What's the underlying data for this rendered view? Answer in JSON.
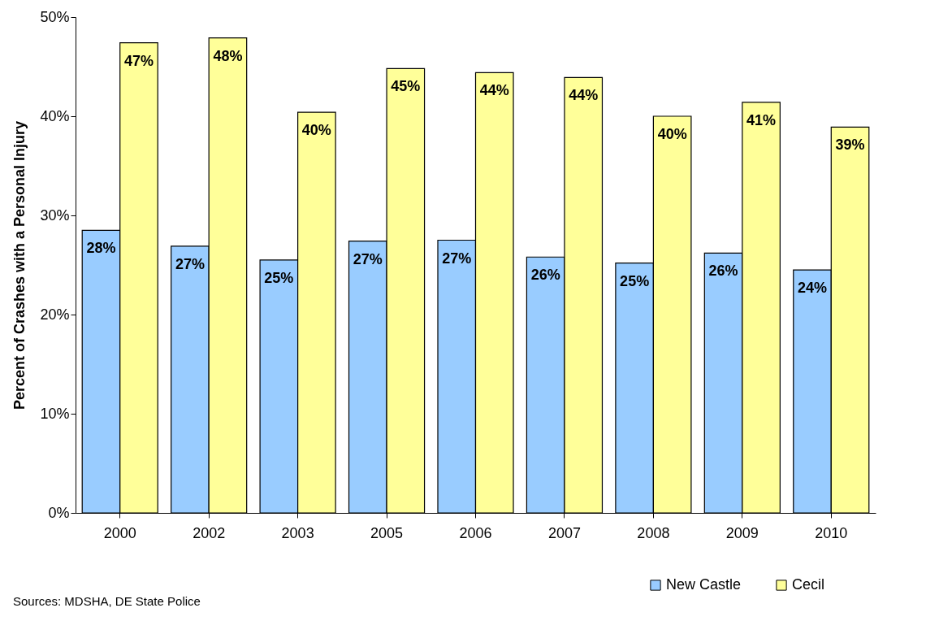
{
  "chart_data": {
    "type": "bar",
    "ylabel": "Percent of Crashes with a Personal Injury",
    "categories": [
      "2000",
      "2002",
      "2003",
      "2005",
      "2006",
      "2007",
      "2008",
      "2009",
      "2010"
    ],
    "series": [
      {
        "name": "New Castle",
        "color": "#99ccff",
        "values": [
          28.5,
          26.9,
          25.5,
          27.4,
          27.5,
          25.8,
          25.2,
          26.2,
          24.5
        ],
        "value_labels": [
          "28%",
          "27%",
          "25%",
          "27%",
          "27%",
          "26%",
          "25%",
          "26%",
          "24%"
        ]
      },
      {
        "name": "Cecil",
        "color": "#ffff99",
        "values": [
          47.4,
          47.9,
          40.4,
          44.8,
          44.4,
          43.9,
          40.0,
          41.4,
          38.9
        ],
        "value_labels": [
          "47%",
          "48%",
          "40%",
          "45%",
          "44%",
          "44%",
          "40%",
          "41%",
          "39%"
        ]
      }
    ],
    "ylim": [
      0,
      50
    ],
    "yticks": [
      {
        "value": 0,
        "label": "0%"
      },
      {
        "value": 10,
        "label": "10%"
      },
      {
        "value": 20,
        "label": "20%"
      },
      {
        "value": 30,
        "label": "30%"
      },
      {
        "value": 40,
        "label": "40%"
      },
      {
        "value": 50,
        "label": "50%"
      }
    ],
    "grid": false,
    "legend": "bottom right",
    "annotations": [
      "Sources: MDSHA, DE State Police"
    ]
  }
}
